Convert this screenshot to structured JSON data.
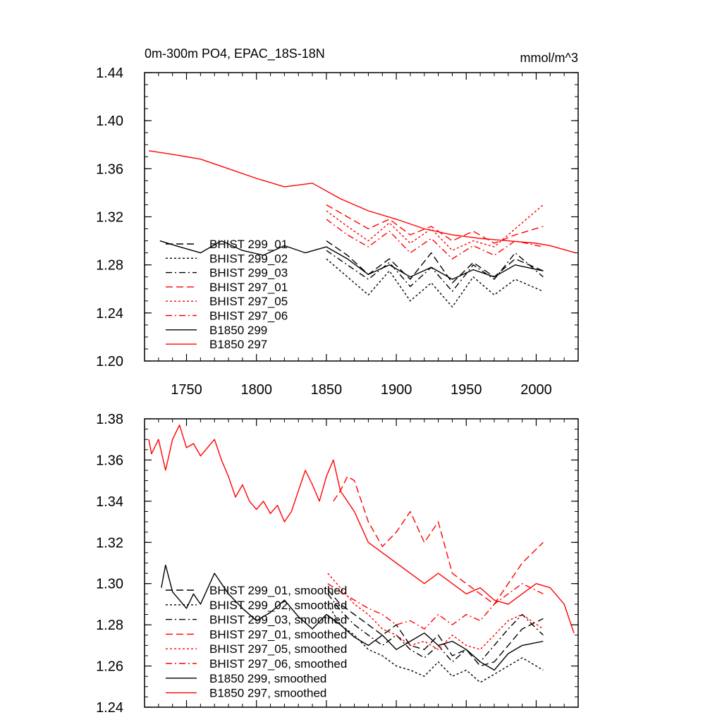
{
  "chart_data": [
    {
      "type": "line",
      "title": "0m-300m PO4, EPAC_18S-18N",
      "units": "mmol/m^3",
      "xlim": [
        1720,
        2030
      ],
      "ylim": [
        1.2,
        1.44
      ],
      "yticks": [
        "1.20",
        "1.24",
        "1.28",
        "1.32",
        "1.36",
        "1.40",
        "1.44"
      ],
      "xticks": [
        "1750",
        "1800",
        "1850",
        "1900",
        "1950",
        "2000"
      ],
      "grid": false,
      "legend_position": "lower-left",
      "series": [
        {
          "name": "BHIST 299_01",
          "color": "#000000",
          "dash": "long-dash",
          "x": [
            1850,
            1865,
            1880,
            1895,
            1910,
            1925,
            1940,
            1955,
            1970,
            1985,
            2005
          ],
          "y": [
            1.3,
            1.288,
            1.272,
            1.285,
            1.268,
            1.29,
            1.265,
            1.282,
            1.27,
            1.285,
            1.275
          ]
        },
        {
          "name": "BHIST 299_02",
          "color": "#000000",
          "dash": "dotted",
          "x": [
            1850,
            1865,
            1880,
            1895,
            1910,
            1925,
            1940,
            1955,
            1970,
            1985,
            2005
          ],
          "y": [
            1.285,
            1.27,
            1.255,
            1.275,
            1.25,
            1.265,
            1.245,
            1.27,
            1.255,
            1.268,
            1.258
          ]
        },
        {
          "name": "BHIST 299_03",
          "color": "#000000",
          "dash": "dash-dot",
          "x": [
            1850,
            1865,
            1880,
            1895,
            1910,
            1925,
            1940,
            1955,
            1970,
            1985,
            2005
          ],
          "y": [
            1.292,
            1.28,
            1.268,
            1.282,
            1.262,
            1.278,
            1.258,
            1.28,
            1.268,
            1.29,
            1.27
          ]
        },
        {
          "name": "BHIST 297_01",
          "color": "#ff0000",
          "dash": "long-dash",
          "x": [
            1850,
            1865,
            1880,
            1895,
            1910,
            1925,
            1940,
            1955,
            1970,
            1985,
            2005
          ],
          "y": [
            1.33,
            1.32,
            1.31,
            1.318,
            1.305,
            1.312,
            1.3,
            1.308,
            1.298,
            1.305,
            1.312
          ]
        },
        {
          "name": "BHIST 297_05",
          "color": "#ff0000",
          "dash": "dotted",
          "x": [
            1850,
            1865,
            1880,
            1895,
            1910,
            1925,
            1940,
            1955,
            1970,
            1985,
            2005
          ],
          "y": [
            1.325,
            1.312,
            1.3,
            1.315,
            1.298,
            1.31,
            1.292,
            1.3,
            1.295,
            1.31,
            1.33
          ]
        },
        {
          "name": "BHIST 297_06",
          "color": "#ff0000",
          "dash": "dash-dot",
          "x": [
            1850,
            1865,
            1880,
            1895,
            1910,
            1925,
            1940,
            1955,
            1970,
            1985,
            2005
          ],
          "y": [
            1.318,
            1.305,
            1.295,
            1.308,
            1.29,
            1.302,
            1.285,
            1.296,
            1.288,
            1.3,
            1.295
          ]
        },
        {
          "name": "B1850 299",
          "color": "#000000",
          "dash": "solid",
          "x": [
            1731,
            1745,
            1760,
            1775,
            1790,
            1805,
            1820,
            1835,
            1850,
            1865,
            1880,
            1895,
            1910,
            1925,
            1940,
            1955,
            1970,
            1985,
            2005
          ],
          "y": [
            1.3,
            1.295,
            1.29,
            1.3,
            1.292,
            1.288,
            1.296,
            1.29,
            1.295,
            1.285,
            1.272,
            1.28,
            1.27,
            1.278,
            1.268,
            1.276,
            1.27,
            1.28,
            1.275
          ]
        },
        {
          "name": "B1850 297",
          "color": "#ff0000",
          "dash": "solid",
          "x": [
            1723,
            1740,
            1760,
            1780,
            1800,
            1820,
            1840,
            1860,
            1880,
            1900,
            1920,
            1940,
            1960,
            1980,
            2000,
            2010,
            2028
          ],
          "y": [
            1.375,
            1.372,
            1.368,
            1.36,
            1.352,
            1.345,
            1.348,
            1.335,
            1.325,
            1.318,
            1.31,
            1.305,
            1.302,
            1.3,
            1.298,
            1.296,
            1.29
          ]
        }
      ]
    },
    {
      "type": "line",
      "title": "",
      "xlim": [
        1720,
        2030
      ],
      "ylim": [
        1.24,
        1.38
      ],
      "yticks": [
        "1.24",
        "1.26",
        "1.28",
        "1.30",
        "1.32",
        "1.34",
        "1.36",
        "1.38"
      ],
      "xticks": [],
      "grid": false,
      "legend_position": "lower-left",
      "series": [
        {
          "name": "BHIST 299_01, smoothed",
          "color": "#000000",
          "dash": "long-dash",
          "x": [
            1851,
            1860,
            1870,
            1880,
            1890,
            1900,
            1910,
            1920,
            1930,
            1940,
            1950,
            1960,
            1970,
            1980,
            1990,
            2005
          ],
          "y": [
            1.297,
            1.29,
            1.285,
            1.28,
            1.275,
            1.28,
            1.27,
            1.268,
            1.275,
            1.265,
            1.268,
            1.26,
            1.262,
            1.27,
            1.278,
            1.283
          ]
        },
        {
          "name": "BHIST 299_02, smoothed",
          "color": "#000000",
          "dash": "dotted",
          "x": [
            1851,
            1860,
            1870,
            1880,
            1890,
            1900,
            1910,
            1920,
            1930,
            1940,
            1950,
            1960,
            1970,
            1980,
            1990,
            2005
          ],
          "y": [
            1.29,
            1.28,
            1.275,
            1.268,
            1.265,
            1.26,
            1.258,
            1.255,
            1.262,
            1.255,
            1.258,
            1.252,
            1.256,
            1.26,
            1.264,
            1.258
          ]
        },
        {
          "name": "BHIST 299_03, smoothed",
          "color": "#000000",
          "dash": "dash-dot",
          "x": [
            1851,
            1860,
            1870,
            1880,
            1890,
            1900,
            1910,
            1920,
            1930,
            1940,
            1950,
            1960,
            1970,
            1980,
            1990,
            2005
          ],
          "y": [
            1.295,
            1.287,
            1.28,
            1.275,
            1.27,
            1.275,
            1.268,
            1.264,
            1.27,
            1.262,
            1.268,
            1.262,
            1.27,
            1.278,
            1.285,
            1.275
          ]
        },
        {
          "name": "BHIST 297_01, smoothed",
          "color": "#ff0000",
          "dash": "long-dash",
          "x": [
            1855,
            1860,
            1865,
            1870,
            1880,
            1890,
            1900,
            1910,
            1920,
            1930,
            1940,
            1950,
            1960,
            1970,
            1980,
            1990,
            2005
          ],
          "y": [
            1.34,
            1.345,
            1.352,
            1.35,
            1.33,
            1.318,
            1.325,
            1.335,
            1.32,
            1.33,
            1.305,
            1.3,
            1.295,
            1.29,
            1.3,
            1.31,
            1.32
          ]
        },
        {
          "name": "BHIST 297_05, smoothed",
          "color": "#ff0000",
          "dash": "dotted",
          "x": [
            1851,
            1860,
            1870,
            1880,
            1890,
            1900,
            1910,
            1920,
            1930,
            1940,
            1950,
            1960,
            1970,
            1980,
            1990,
            2005
          ],
          "y": [
            1.305,
            1.298,
            1.29,
            1.285,
            1.278,
            1.275,
            1.27,
            1.272,
            1.268,
            1.275,
            1.27,
            1.268,
            1.275,
            1.282,
            1.285,
            1.278
          ]
        },
        {
          "name": "BHIST 297_06, smoothed",
          "color": "#ff0000",
          "dash": "dash-dot",
          "x": [
            1851,
            1860,
            1870,
            1880,
            1890,
            1900,
            1910,
            1920,
            1930,
            1940,
            1950,
            1960,
            1970,
            1980,
            1990,
            2005
          ],
          "y": [
            1.3,
            1.296,
            1.292,
            1.288,
            1.285,
            1.28,
            1.282,
            1.278,
            1.285,
            1.28,
            1.285,
            1.282,
            1.29,
            1.295,
            1.3,
            1.295
          ]
        },
        {
          "name": "B1850 299, smoothed",
          "color": "#000000",
          "dash": "solid",
          "x": [
            1732,
            1735,
            1740,
            1745,
            1750,
            1755,
            1760,
            1770,
            1780,
            1790,
            1800,
            1810,
            1820,
            1830,
            1840,
            1850,
            1860,
            1870,
            1880,
            1890,
            1900,
            1910,
            1920,
            1930,
            1940,
            1950,
            1960,
            1970,
            1980,
            1990,
            2005
          ],
          "y": [
            1.298,
            1.309,
            1.296,
            1.292,
            1.288,
            1.295,
            1.29,
            1.305,
            1.295,
            1.288,
            1.282,
            1.286,
            1.292,
            1.284,
            1.278,
            1.285,
            1.28,
            1.274,
            1.27,
            1.275,
            1.268,
            1.272,
            1.276,
            1.27,
            1.272,
            1.268,
            1.262,
            1.258,
            1.266,
            1.27,
            1.272
          ]
        },
        {
          "name": "B1850 297, smoothed",
          "color": "#ff0000",
          "dash": "solid",
          "x": [
            1723,
            1725,
            1730,
            1735,
            1740,
            1745,
            1750,
            1755,
            1760,
            1770,
            1775,
            1780,
            1785,
            1790,
            1795,
            1800,
            1805,
            1810,
            1815,
            1820,
            1825,
            1830,
            1835,
            1840,
            1845,
            1850,
            1855,
            1860,
            1865,
            1870,
            1880,
            1890,
            1900,
            1910,
            1920,
            1930,
            1940,
            1950,
            1960,
            1970,
            1980,
            1990,
            2000,
            2010,
            2020,
            2027
          ],
          "y": [
            1.37,
            1.363,
            1.37,
            1.355,
            1.37,
            1.377,
            1.366,
            1.368,
            1.362,
            1.37,
            1.36,
            1.352,
            1.342,
            1.348,
            1.34,
            1.336,
            1.34,
            1.334,
            1.338,
            1.33,
            1.335,
            1.345,
            1.355,
            1.348,
            1.34,
            1.352,
            1.36,
            1.345,
            1.34,
            1.335,
            1.32,
            1.315,
            1.31,
            1.305,
            1.3,
            1.305,
            1.3,
            1.295,
            1.298,
            1.292,
            1.29,
            1.295,
            1.3,
            1.298,
            1.29,
            1.276
          ]
        }
      ]
    }
  ]
}
